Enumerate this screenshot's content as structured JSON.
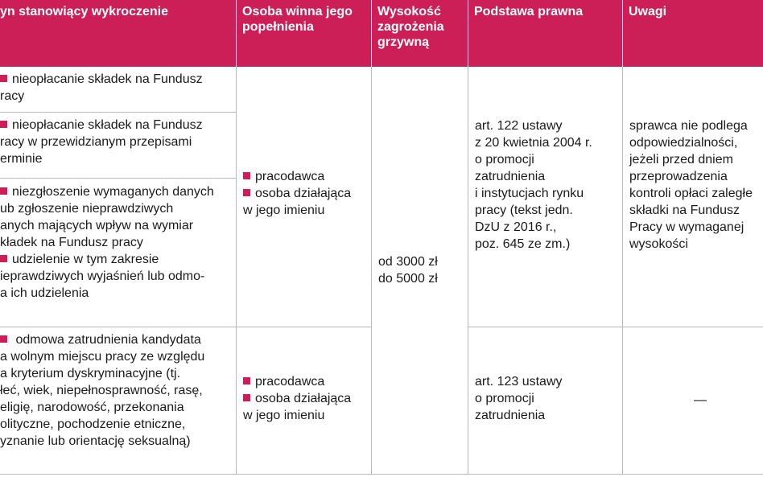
{
  "header": {
    "col1": "yn stanowiący wykroczenie",
    "col2_l1": "Osoba winna jego",
    "col2_l2": "popełnienia",
    "col3_l1": "Wysokość",
    "col3_l2": "zagrożenia",
    "col3_l3": "grzywną",
    "col4": "Podstawa prawna",
    "col5": "Uwagi"
  },
  "row1": {
    "act1": [
      "nieopłacanie składek na Fundusz",
      "racy"
    ],
    "act2": [
      "nieopłacanie składek na Fundusz",
      "racy w przewidzianym przepisami",
      "erminie"
    ],
    "act3": [
      "niezgłoszenie wymaganych danych",
      "ub zgłoszenie nieprawdziwych",
      "anych mających wpływ na wymiar",
      "kładek na Fundusz pracy"
    ],
    "act4": [
      "udzielenie w tym zakresie",
      "ieprawdziwych wyjaśnień lub odmo-",
      "a ich udzielenia"
    ],
    "person1": "pracodawca",
    "person2_l1": "osoba działająca",
    "person2_l2": "w jego imieniu",
    "basis": [
      "art. 122 ustawy",
      "z 20 kwietnia 2004 r.",
      "o promocji",
      "zatrudnienia",
      "i instytucjach rynku",
      "pracy (tekst jedn.",
      "DzU z 2016 r.,",
      "poz. 645 ze zm.)"
    ],
    "notes": [
      "sprawca nie podlega",
      "odpowiedzialności,",
      "jeżeli przed dniem",
      "przeprowadzenia",
      "kontroli opłaci zaległe",
      "składki na Fundusz",
      "Pracy w wymaganej",
      "wysokości"
    ]
  },
  "fine": [
    "od 3000 zł",
    "do 5000 zł"
  ],
  "row2": {
    "act": [
      " odmowa zatrudnienia kandydata",
      "a wolnym miejscu pracy ze względu",
      "a kryterium dyskryminacyjne (tj.",
      "łeć, wiek, niepełnosprawność, rasę,",
      "eligię, narodowość, przekonania",
      "olityczne, pochodzenie etniczne,",
      "yznanie lub orientację seksualną)"
    ],
    "person1": "pracodawca",
    "person2_l1": "osoba działająca",
    "person2_l2": "w jego imieniu",
    "basis": [
      "art. 123 ustawy",
      "o promocji",
      "zatrudnienia"
    ],
    "notes": "—"
  }
}
